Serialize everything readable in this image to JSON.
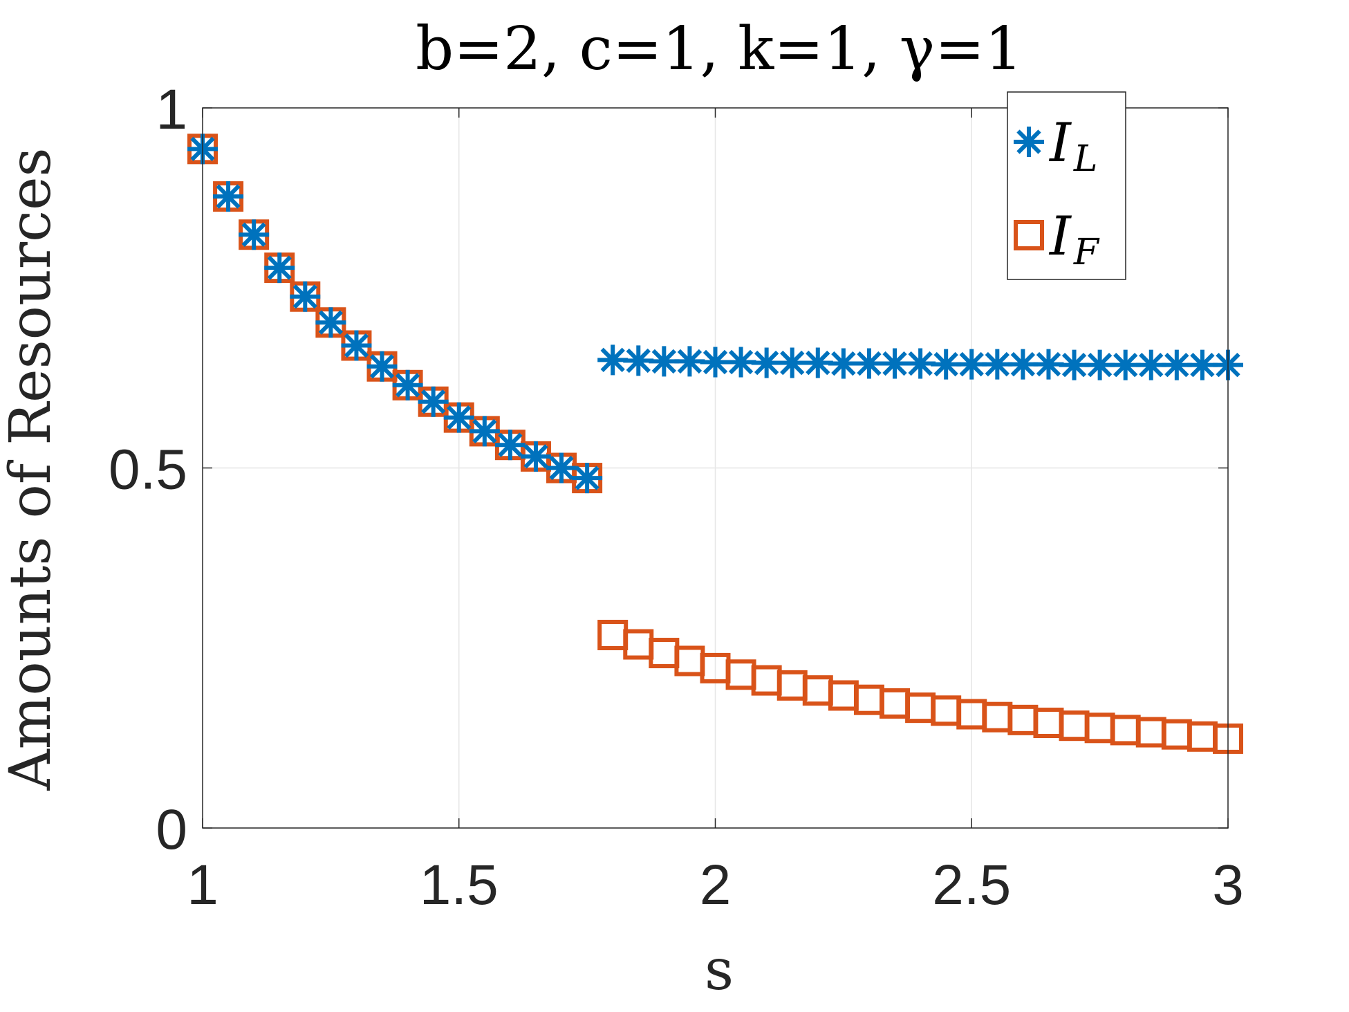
{
  "chart_data": {
    "type": "scatter",
    "title": "b=2, c=1, k=1, γ=1",
    "xlabel": "s",
    "ylabel": "Amounts of Resources",
    "xlim": [
      1,
      3
    ],
    "ylim": [
      0,
      1
    ],
    "xticks": [
      1,
      1.5,
      2,
      2.5,
      3
    ],
    "xtick_labels": [
      "1",
      "1.5",
      "2",
      "2.5",
      "3"
    ],
    "yticks": [
      0,
      0.5,
      1
    ],
    "ytick_labels": [
      "0",
      "0.5",
      "1"
    ],
    "grid": true,
    "legend_position": "top-right",
    "colors": {
      "I_L": "#0072BD",
      "I_F": "#D95319"
    },
    "series": [
      {
        "name": "I_L",
        "legend_main": "I",
        "legend_sub": "L",
        "marker": "asterisk",
        "x": [
          1.0,
          1.05,
          1.1,
          1.15,
          1.2,
          1.25,
          1.3,
          1.35,
          1.4,
          1.45,
          1.5,
          1.55,
          1.6,
          1.65,
          1.7,
          1.75,
          1.8,
          1.85,
          1.9,
          1.95,
          2.0,
          2.05,
          2.1,
          2.15,
          2.2,
          2.25,
          2.3,
          2.35,
          2.4,
          2.45,
          2.5,
          2.55,
          2.6,
          2.65,
          2.7,
          2.75,
          2.8,
          2.85,
          2.9,
          2.95,
          3.0
        ],
        "y": [
          0.943,
          0.877,
          0.824,
          0.778,
          0.738,
          0.702,
          0.67,
          0.641,
          0.615,
          0.592,
          0.57,
          0.551,
          0.532,
          0.516,
          0.5,
          0.486,
          0.65,
          0.649,
          0.648,
          0.648,
          0.647,
          0.647,
          0.646,
          0.646,
          0.646,
          0.645,
          0.645,
          0.645,
          0.645,
          0.644,
          0.644,
          0.644,
          0.644,
          0.644,
          0.643,
          0.643,
          0.643,
          0.643,
          0.643,
          0.643,
          0.643
        ]
      },
      {
        "name": "I_F",
        "legend_main": "I",
        "legend_sub": "F",
        "marker": "square",
        "x": [
          1.0,
          1.05,
          1.1,
          1.15,
          1.2,
          1.25,
          1.3,
          1.35,
          1.4,
          1.45,
          1.5,
          1.55,
          1.6,
          1.65,
          1.7,
          1.75,
          1.8,
          1.85,
          1.9,
          1.95,
          2.0,
          2.05,
          2.1,
          2.15,
          2.2,
          2.25,
          2.3,
          2.35,
          2.4,
          2.45,
          2.5,
          2.55,
          2.6,
          2.65,
          2.7,
          2.75,
          2.8,
          2.85,
          2.9,
          2.95,
          3.0
        ],
        "y": [
          0.943,
          0.877,
          0.824,
          0.778,
          0.738,
          0.702,
          0.67,
          0.641,
          0.615,
          0.592,
          0.57,
          0.551,
          0.532,
          0.516,
          0.5,
          0.486,
          0.268,
          0.255,
          0.243,
          0.232,
          0.222,
          0.213,
          0.205,
          0.198,
          0.191,
          0.184,
          0.178,
          0.173,
          0.167,
          0.163,
          0.158,
          0.154,
          0.15,
          0.146,
          0.142,
          0.139,
          0.136,
          0.133,
          0.13,
          0.127,
          0.124
        ]
      }
    ]
  }
}
